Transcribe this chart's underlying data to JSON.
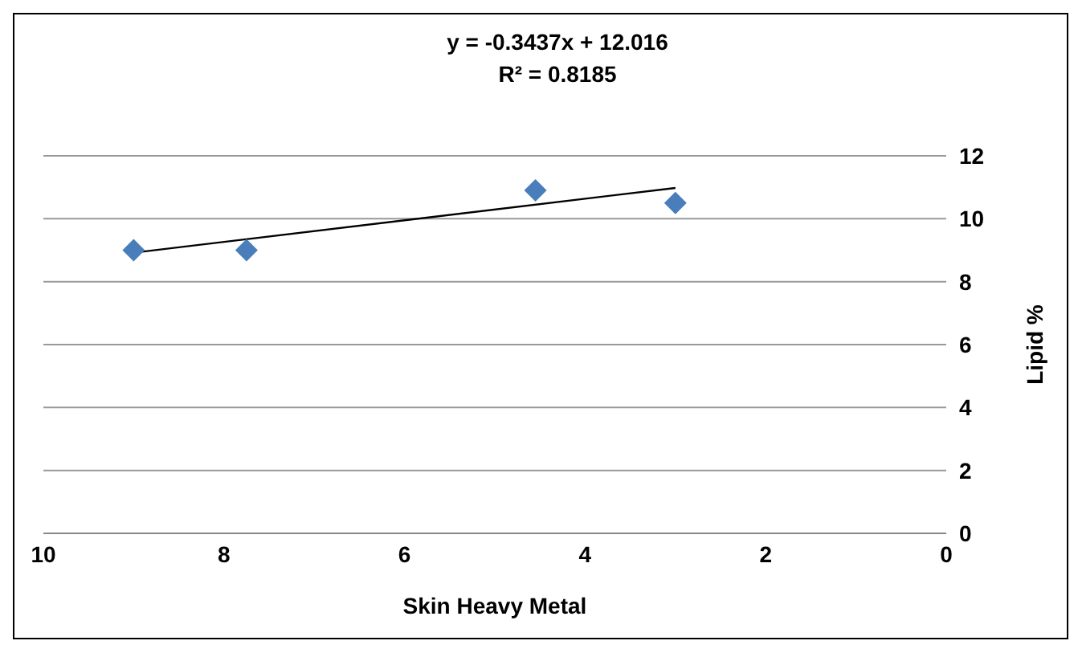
{
  "chart_data": {
    "type": "scatter",
    "xlabel": "Skin Heavy Metal",
    "ylabel": "Lipid %",
    "annotations": [
      "y = -0.3437x + 12.016",
      "R² = 0.8185"
    ],
    "xlim": [
      10,
      0
    ],
    "xticks": [
      10,
      8,
      6,
      4,
      2,
      0
    ],
    "ylim": [
      0,
      12
    ],
    "yticks": [
      0,
      2,
      4,
      6,
      8,
      10,
      12
    ],
    "grid": "y",
    "legend": false,
    "series": [
      {
        "color": "#4a7ebb",
        "marker": "diamond",
        "x": [
          9.0,
          7.75,
          4.55,
          3.0
        ],
        "values": [
          9.0,
          9.0,
          10.9,
          10.5
        ]
      },
      {
        "type": "line",
        "color": "#000000",
        "marker": "none",
        "x": [
          9.0,
          3.0
        ],
        "values": [
          8.92,
          10.98
        ]
      }
    ]
  }
}
